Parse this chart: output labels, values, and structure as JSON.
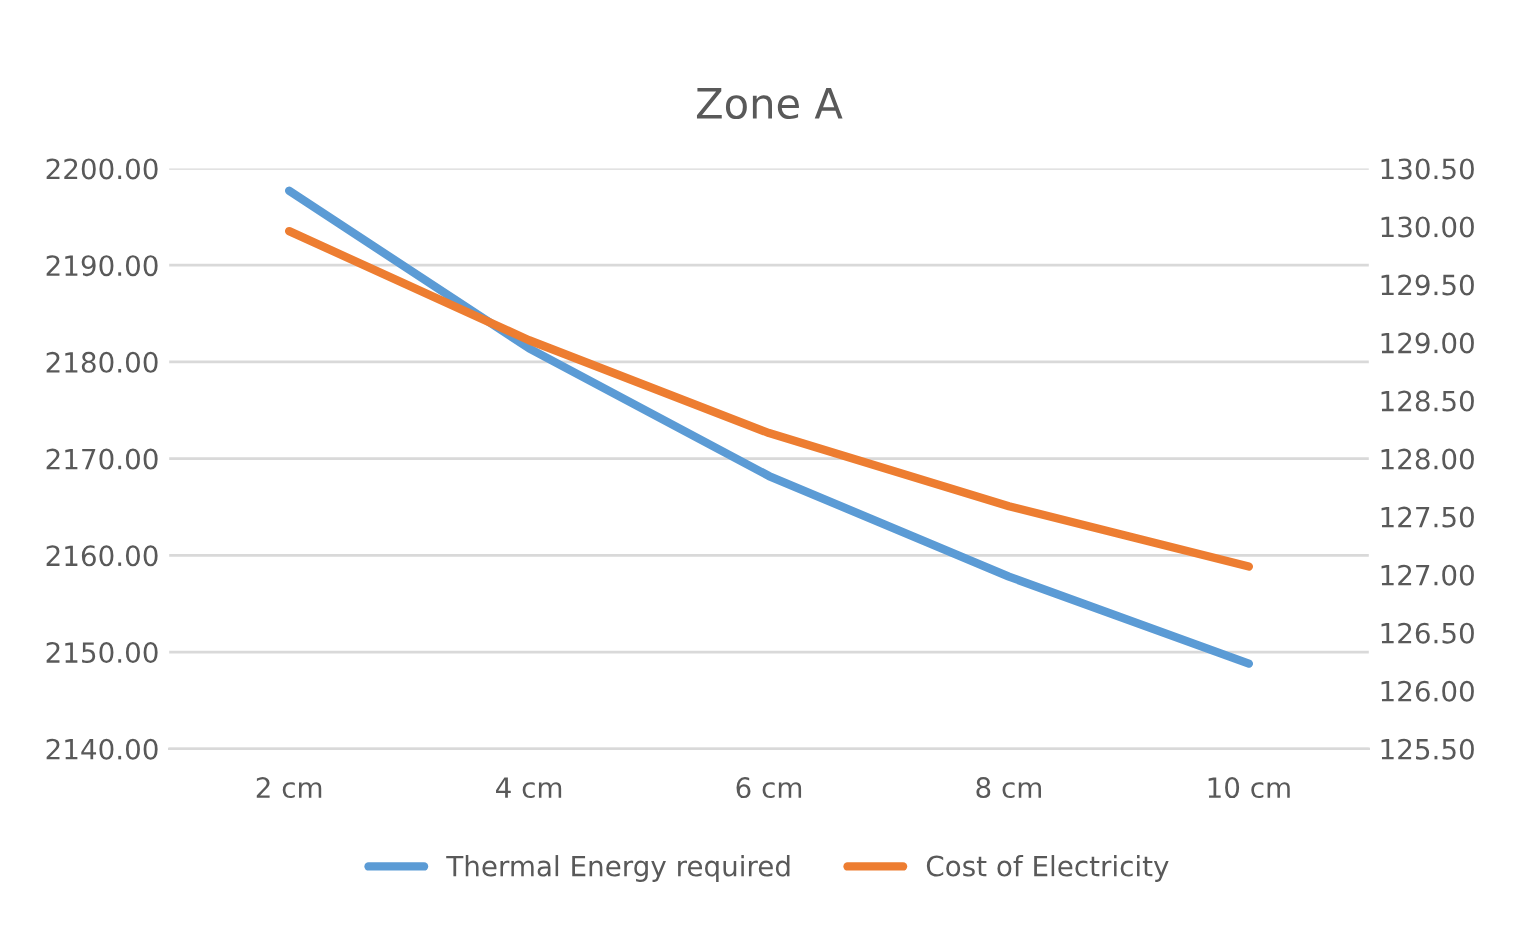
{
  "chart_data": {
    "type": "line",
    "title": "Zone A",
    "categories": [
      "2 cm",
      "4 cm",
      "6 cm",
      "8 cm",
      "10 cm"
    ],
    "series": [
      {
        "name": "Thermal Energy required",
        "color": "#5b9bd5",
        "values": [
          2197.7,
          2181.4,
          2168.2,
          2157.8,
          2148.8
        ]
      },
      {
        "name": "Cost of Electricity",
        "color": "#ed7d31",
        "axis": "y2",
        "values": [
          129.96,
          129.02,
          128.22,
          127.59,
          127.07
        ]
      }
    ],
    "ylim": [
      2140,
      2200
    ],
    "yticks": [
      {
        "value": 2140,
        "label": "2140.00"
      },
      {
        "value": 2150,
        "label": "2150.00"
      },
      {
        "value": 2160,
        "label": "2160.00"
      },
      {
        "value": 2170,
        "label": "2170.00"
      },
      {
        "value": 2180,
        "label": "2180.00"
      },
      {
        "value": 2190,
        "label": "2190.00"
      },
      {
        "value": 2200,
        "label": "2200.00"
      }
    ],
    "y2lim": [
      125.5,
      130.5
    ],
    "y2ticks": [
      {
        "value": 125.5,
        "label": "125.50"
      },
      {
        "value": 126,
        "label": "126.00"
      },
      {
        "value": 126.5,
        "label": "126.50"
      },
      {
        "value": 127,
        "label": "127.00"
      },
      {
        "value": 127.5,
        "label": "127.50"
      },
      {
        "value": 128,
        "label": "128.00"
      },
      {
        "value": 128.5,
        "label": "128.50"
      },
      {
        "value": 129,
        "label": "129.00"
      },
      {
        "value": 129.5,
        "label": "129.50"
      },
      {
        "value": 130,
        "label": "130.00"
      },
      {
        "value": 130.5,
        "label": "130.50"
      }
    ],
    "grid": "y",
    "legend": "bottom",
    "marker": "none",
    "line_style": "solid"
  }
}
